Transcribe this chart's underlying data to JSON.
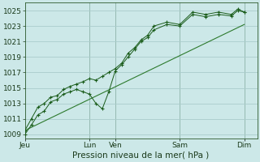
{
  "background_color": "#cce8e8",
  "grid_color": "#aacccc",
  "line_color": "#1a5c1a",
  "trend_color": "#2d7a2d",
  "ylim": [
    1008.5,
    1026.0
  ],
  "yticks": [
    1009,
    1011,
    1013,
    1015,
    1017,
    1019,
    1021,
    1023,
    1025
  ],
  "xlabel": "Pression niveau de la mer( hPa )",
  "xlabel_fontsize": 7.5,
  "tick_fontsize": 6.5,
  "day_labels": [
    "Jeu",
    "Lun",
    "Ven",
    "Sam",
    "Dim"
  ],
  "day_positions": [
    0,
    5,
    7,
    12,
    17
  ],
  "total_steps": 18,
  "vline_positions": [
    5,
    7,
    12,
    17
  ],
  "main_line": {
    "x": [
      0,
      0.5,
      1,
      1.5,
      2,
      2.5,
      3,
      3.5,
      4,
      4.5,
      5,
      5.5,
      6,
      6.5,
      7,
      7.5,
      8,
      8.5,
      9,
      9.5,
      10,
      11,
      12,
      13,
      14,
      15,
      16,
      16.5,
      17
    ],
    "y": [
      1009.0,
      1010.2,
      1011.5,
      1012.0,
      1013.2,
      1013.5,
      1014.2,
      1014.5,
      1014.8,
      1014.5,
      1014.2,
      1013.0,
      1012.3,
      1014.5,
      1017.2,
      1018.0,
      1019.0,
      1020.0,
      1021.0,
      1021.5,
      1022.5,
      1023.2,
      1023.0,
      1024.5,
      1024.2,
      1024.5,
      1024.3,
      1025.0,
      1024.8
    ]
  },
  "upper_line": {
    "x": [
      0,
      0.5,
      1,
      1.5,
      2,
      2.5,
      3,
      3.5,
      4,
      4.5,
      5,
      5.5,
      6,
      6.5,
      7,
      7.5,
      8,
      8.5,
      9,
      9.5,
      10,
      11,
      12,
      13,
      14,
      15,
      16,
      16.5,
      17
    ],
    "y": [
      1009.5,
      1011.0,
      1012.5,
      1013.0,
      1013.8,
      1014.0,
      1014.8,
      1015.2,
      1015.5,
      1015.8,
      1016.2,
      1016.0,
      1016.5,
      1017.0,
      1017.5,
      1018.2,
      1019.5,
      1020.2,
      1021.2,
      1021.8,
      1023.0,
      1023.5,
      1023.2,
      1024.8,
      1024.5,
      1024.8,
      1024.5,
      1025.2,
      1024.8
    ]
  },
  "trend_line": {
    "x": [
      0,
      17
    ],
    "y": [
      1009.5,
      1023.2
    ]
  }
}
